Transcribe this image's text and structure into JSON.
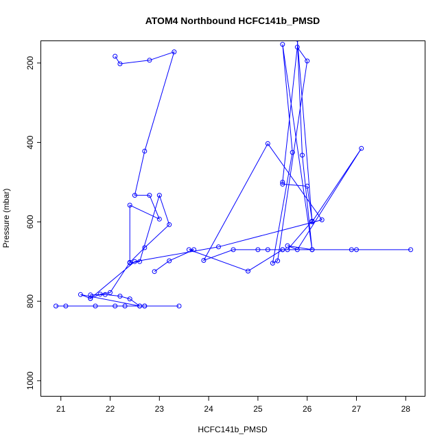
{
  "chart_data": {
    "type": "scatter",
    "title": "ATOM4 Northbound HCFC141b_PMSD",
    "xlabel": "HCFC141b_PMSD",
    "ylabel": "Pressure (mbar)",
    "xlim": [
      20.6,
      28.4
    ],
    "ylim": [
      1040,
      145
    ],
    "y_reversed": true,
    "xticks": [
      21,
      22,
      23,
      24,
      25,
      26,
      27,
      28
    ],
    "yticks": [
      200,
      400,
      600,
      800,
      1000
    ],
    "grid": false,
    "legend": "none",
    "series": [
      {
        "color": "#0000ff",
        "mode": "lines+markers",
        "x": [
          22.1,
          22.2,
          22.8,
          23.3,
          22.7,
          22.5,
          22.8,
          23.0,
          22.4,
          22.4,
          22.6,
          23.0,
          23.2,
          22.7,
          22.4,
          22.0,
          21.8,
          21.6,
          21.6,
          21.9,
          22.2,
          22.4,
          22.6,
          22.7,
          21.1,
          20.9,
          21.7,
          22.1,
          22.3,
          22.7,
          23.4,
          22.6,
          21.4,
          21.6,
          22.5,
          24.2,
          26.3,
          25.2,
          23.9,
          24.5,
          25.0,
          25.2,
          26.9,
          27.0,
          28.1,
          25.5,
          25.6,
          26.1,
          26.0,
          25.5,
          25.5,
          25.8,
          26.0,
          25.4,
          25.3,
          25.7,
          25.5,
          26.1,
          25.9,
          25.8,
          26.1,
          27.1,
          25.8,
          25.6,
          26.1,
          25.5,
          24.8,
          23.6,
          23.7,
          23.2,
          22.9
        ],
        "y": [
          183,
          202,
          193,
          172,
          422,
          533,
          533,
          593,
          558,
          703,
          700,
          533,
          607,
          665,
          702,
          778,
          782,
          793,
          784,
          783,
          787,
          794,
          812,
          812,
          812,
          812,
          812,
          812,
          812,
          812,
          812,
          812,
          783,
          793,
          700,
          663,
          595,
          403,
          697,
          670,
          670,
          670,
          670,
          670,
          670,
          670,
          670,
          598,
          510,
          505,
          500,
          160,
          195,
          698,
          704,
          425,
          153,
          670,
          432,
          140,
          600,
          415,
          670,
          660,
          670,
          670,
          724,
          670,
          670,
          698,
          725
        ]
      }
    ]
  }
}
